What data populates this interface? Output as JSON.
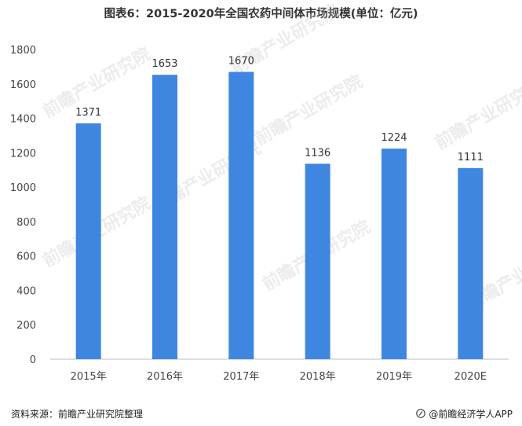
{
  "title": "图表6：2015-2020年全国农药中间体市场规模(单位：亿元)",
  "watermark": "前瞻产业研究院",
  "chart_data": {
    "type": "bar",
    "categories": [
      "2015年",
      "2016年",
      "2017年",
      "2018年",
      "2019年",
      "2020E"
    ],
    "values": [
      1371,
      1653,
      1670,
      1136,
      1224,
      1111
    ],
    "data_labels": [
      "1371",
      "1653",
      "1670",
      "1136",
      "1224",
      "1111"
    ],
    "yticks": [
      0,
      200,
      400,
      600,
      800,
      1000,
      1200,
      1400,
      1600,
      1800
    ],
    "ylim": [
      0,
      1800
    ],
    "grid": false,
    "bar_color": "#3f86e0"
  },
  "footer": {
    "source": "资料来源：前瞻产业研究院整理",
    "brand": "@前瞻经济学人APP"
  }
}
